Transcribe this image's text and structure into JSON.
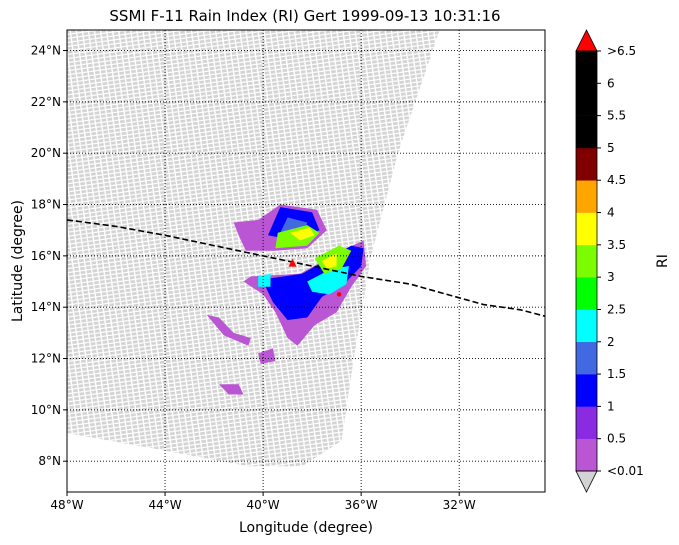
{
  "chart_data": {
    "type": "heatmap",
    "title": "SSMI F-11 Rain Index (RI) Gert 1999-09-13 10:31:16",
    "xlabel": "Longitude (degree)",
    "ylabel": "Latitude (degree)",
    "xlim": [
      -48,
      -28.5
    ],
    "ylim": [
      6.8,
      24.8
    ],
    "xticks": [
      {
        "value": -48,
        "label": "48°W"
      },
      {
        "value": -44,
        "label": "44°W"
      },
      {
        "value": -40,
        "label": "40°W"
      },
      {
        "value": -36,
        "label": "36°W"
      },
      {
        "value": -32,
        "label": "32°W"
      }
    ],
    "yticks": [
      {
        "value": 8,
        "label": "8°N"
      },
      {
        "value": 10,
        "label": "10°N"
      },
      {
        "value": 12,
        "label": "12°N"
      },
      {
        "value": 14,
        "label": "14°N"
      },
      {
        "value": 16,
        "label": "16°N"
      },
      {
        "value": 18,
        "label": "18°N"
      },
      {
        "value": 20,
        "label": "20°N"
      },
      {
        "value": 22,
        "label": "22°N"
      },
      {
        "value": 24,
        "label": "24°N"
      }
    ],
    "grid": true,
    "grid_style": "dotted",
    "swath": {
      "no_rain_color": "#d3d3d3",
      "right_edge": [
        [
          -32.8,
          24.8
        ],
        [
          -34.5,
          20
        ],
        [
          -35.6,
          16
        ],
        [
          -36.3,
          12
        ],
        [
          -36.8,
          8.8
        ],
        [
          -38.4,
          7.8
        ],
        [
          -40.6,
          7.8
        ],
        [
          -44.5,
          8.5
        ],
        [
          -48,
          9.1
        ]
      ]
    },
    "rain_regions": [
      {
        "value": 0.3,
        "polygon": [
          [
            -41.2,
            17.3
          ],
          [
            -40.2,
            17.4
          ],
          [
            -39.3,
            18.0
          ],
          [
            -37.8,
            17.8
          ],
          [
            -37.4,
            17.0
          ],
          [
            -38.2,
            16.3
          ],
          [
            -39.5,
            16.2
          ],
          [
            -40.7,
            16.2
          ],
          [
            -41.0,
            16.8
          ]
        ]
      },
      {
        "value": 1.2,
        "polygon": [
          [
            -39.3,
            17.9
          ],
          [
            -38.0,
            17.7
          ],
          [
            -37.7,
            17.0
          ],
          [
            -38.7,
            16.6
          ],
          [
            -39.8,
            16.8
          ]
        ]
      },
      {
        "value": 1.8,
        "polygon": [
          [
            -39.0,
            17.5
          ],
          [
            -38.2,
            17.3
          ],
          [
            -38.3,
            16.9
          ],
          [
            -39.3,
            16.9
          ]
        ]
      },
      {
        "value": 3.2,
        "polygon": [
          [
            -39.4,
            16.9
          ],
          [
            -38.2,
            17.2
          ],
          [
            -37.7,
            16.9
          ],
          [
            -38.2,
            16.4
          ],
          [
            -39.5,
            16.3
          ]
        ]
      },
      {
        "value": 3.7,
        "polygon": [
          [
            -38.9,
            16.9
          ],
          [
            -38.1,
            17.1
          ],
          [
            -37.9,
            16.8
          ],
          [
            -38.5,
            16.6
          ]
        ]
      },
      {
        "value": 0.3,
        "polygon": [
          [
            -40.5,
            15.2
          ],
          [
            -38.5,
            15.3
          ],
          [
            -36.6,
            16.3
          ],
          [
            -35.9,
            16.6
          ],
          [
            -35.8,
            15.6
          ],
          [
            -36.4,
            14.8
          ],
          [
            -37.0,
            13.8
          ],
          [
            -37.9,
            13.3
          ],
          [
            -38.6,
            12.5
          ],
          [
            -39.0,
            12.8
          ],
          [
            -39.5,
            13.8
          ],
          [
            -40.0,
            14.5
          ],
          [
            -40.8,
            15.0
          ]
        ]
      },
      {
        "value": 1.2,
        "polygon": [
          [
            -39.9,
            15.1
          ],
          [
            -38.4,
            15.3
          ],
          [
            -36.4,
            16.4
          ],
          [
            -35.9,
            16.3
          ],
          [
            -36.0,
            15.6
          ],
          [
            -36.7,
            14.9
          ],
          [
            -37.6,
            14.4
          ],
          [
            -38.2,
            13.6
          ],
          [
            -39.0,
            13.5
          ],
          [
            -39.6,
            14.2
          ],
          [
            -39.9,
            14.8
          ]
        ]
      },
      {
        "value": 2.3,
        "polygon": [
          [
            -38.2,
            15.0
          ],
          [
            -37.2,
            15.5
          ],
          [
            -36.5,
            15.6
          ],
          [
            -36.6,
            14.9
          ],
          [
            -37.3,
            14.5
          ],
          [
            -38.0,
            14.6
          ]
        ]
      },
      {
        "value": 2.3,
        "polygon": [
          [
            -40.2,
            15.2
          ],
          [
            -39.7,
            15.3
          ],
          [
            -39.7,
            14.8
          ],
          [
            -40.2,
            14.8
          ]
        ]
      },
      {
        "value": 3.2,
        "polygon": [
          [
            -37.9,
            15.9
          ],
          [
            -36.9,
            16.4
          ],
          [
            -36.4,
            16.2
          ],
          [
            -36.8,
            15.5
          ],
          [
            -37.5,
            15.3
          ]
        ]
      },
      {
        "value": 3.7,
        "polygon": [
          [
            -37.6,
            15.8
          ],
          [
            -37.0,
            16.1
          ],
          [
            -37.0,
            15.6
          ],
          [
            -37.4,
            15.5
          ]
        ]
      },
      {
        "value": 0.2,
        "polygon": [
          [
            -42.3,
            13.7
          ],
          [
            -41.8,
            13.6
          ],
          [
            -41.2,
            13.0
          ],
          [
            -40.5,
            12.8
          ],
          [
            -40.6,
            12.5
          ],
          [
            -41.6,
            12.9
          ]
        ]
      },
      {
        "value": 0.2,
        "polygon": [
          [
            -40.2,
            12.2
          ],
          [
            -39.6,
            12.4
          ],
          [
            -39.5,
            11.9
          ],
          [
            -40.1,
            11.8
          ]
        ]
      },
      {
        "value": 0.2,
        "polygon": [
          [
            -41.8,
            11.0
          ],
          [
            -41.0,
            11.0
          ],
          [
            -40.8,
            10.6
          ],
          [
            -41.4,
            10.6
          ]
        ]
      }
    ],
    "storm_track": [
      [
        -48.0,
        17.4
      ],
      [
        -46.0,
        17.15
      ],
      [
        -44.0,
        16.8
      ],
      [
        -42.0,
        16.4
      ],
      [
        -40.0,
        16.0
      ],
      [
        -38.0,
        15.6
      ],
      [
        -36.0,
        15.2
      ],
      [
        -34.0,
        14.9
      ],
      [
        -32.5,
        14.5
      ],
      [
        -31.0,
        14.1
      ],
      [
        -29.5,
        13.9
      ],
      [
        -28.5,
        13.65
      ]
    ],
    "storm_center": [
      -38.8,
      15.7
    ],
    "extra_marker": [
      -36.9,
      14.5
    ],
    "colorbar": {
      "label": "RI",
      "under_color": "#d3d3d3",
      "over_color": "#ff0000",
      "bounds": [
        0.01,
        0.5,
        1,
        1.5,
        2,
        2.5,
        3,
        3.5,
        4,
        4.5,
        5,
        5.5,
        6,
        6.5
      ],
      "colors": [
        "#ba55d3",
        "#8a2be2",
        "#0000ff",
        "#4169e1",
        "#00ffff",
        "#00ff00",
        "#7cfc00",
        "#ffff00",
        "#ffa500",
        "#800000",
        "#000000",
        "#000000",
        "#000000"
      ],
      "tick_labels": [
        "<0.01",
        "0.5",
        "1",
        "1.5",
        "2",
        "2.5",
        "3",
        "3.5",
        "4",
        "4.5",
        "5",
        "5.5",
        "6",
        ">6.5"
      ]
    }
  }
}
